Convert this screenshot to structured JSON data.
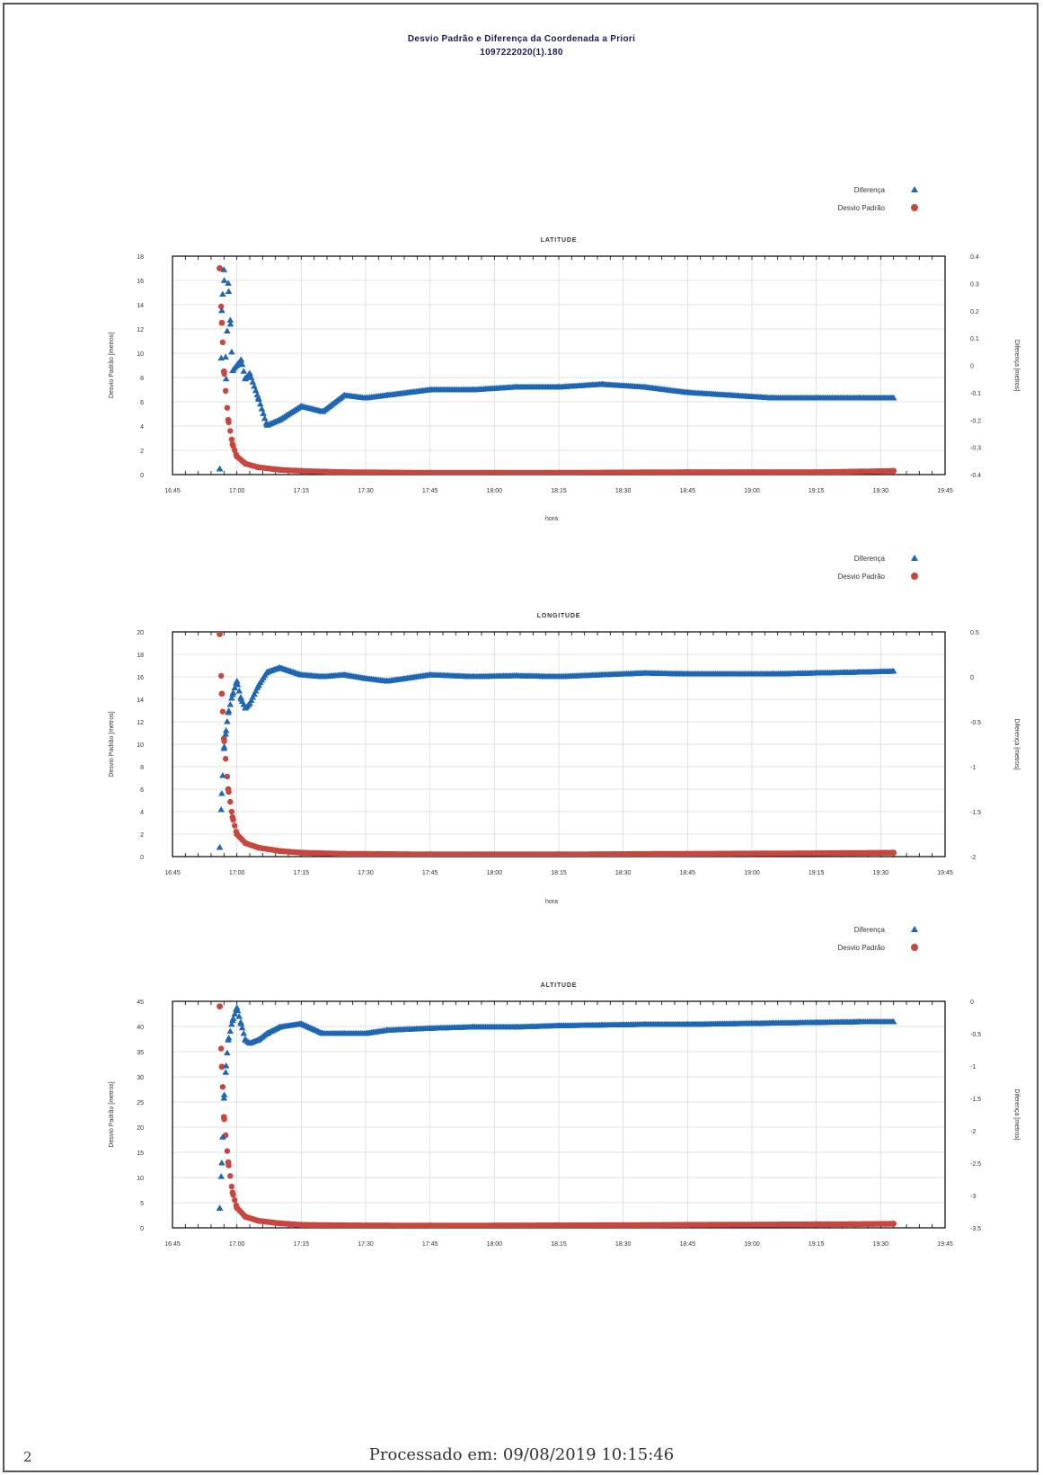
{
  "header": {
    "title": "Desvio Padrão e Diferença da Coordenada a Priori",
    "subtitle": "1097222020(1).180"
  },
  "footer": {
    "processed_text": "Processado em: 09/08/2019 10:15:46",
    "page_number": "2"
  },
  "colors": {
    "diferenca": "#1f66b3",
    "desvio": "#c8463d",
    "grid": "#d9d9d9",
    "frame": "#000000"
  },
  "chart_data": [
    {
      "type": "scatter",
      "title": "LATITUDE",
      "xlabel": "hora",
      "ylabel_left": "Desvio Padrão [metros]",
      "ylabel_right": "Diferença [metros]",
      "legend": [
        "Diferença",
        "Desvio Padrão"
      ],
      "legend_position": "top-right",
      "x_ticks": [
        "16:45",
        "17:00",
        "17:15",
        "17:30",
        "17:45",
        "18:00",
        "18:15",
        "18:30",
        "18:45",
        "19:00",
        "19:15",
        "19:30",
        "19:45"
      ],
      "x_range_minutes": [
        0,
        180
      ],
      "left_axis": {
        "ticks": [
          "0",
          "2",
          "4",
          "6",
          "8",
          "10",
          "12",
          "14",
          "16",
          "18"
        ],
        "range": [
          0,
          18
        ]
      },
      "right_axis": {
        "ticks": [
          "-0.4",
          "-0.3",
          "-0.2",
          "-0.1",
          "0",
          "0.1",
          "0.2",
          "0.3",
          "0.4"
        ],
        "range": [
          -0.4,
          0.4
        ]
      },
      "series": [
        {
          "name": "Diferença",
          "axis": "right",
          "marker": "triangle",
          "x": [
            11,
            11.5,
            12,
            12.5,
            13,
            13.5,
            14,
            15,
            16,
            17,
            18,
            20,
            22,
            25,
            30,
            35,
            40,
            45,
            50,
            60,
            70,
            80,
            90,
            100,
            110,
            120,
            130,
            140,
            150,
            160,
            168
          ],
          "y": [
            -0.38,
            0.2,
            0.35,
            -0.05,
            0.3,
            0.15,
            -0.02,
            0.0,
            0.02,
            -0.05,
            -0.03,
            -0.12,
            -0.22,
            -0.2,
            -0.15,
            -0.17,
            -0.11,
            -0.12,
            -0.11,
            -0.09,
            -0.09,
            -0.08,
            -0.08,
            -0.07,
            -0.08,
            -0.1,
            -0.11,
            -0.12,
            -0.12,
            -0.12,
            -0.12
          ]
        },
        {
          "name": "Desvio Padrão",
          "axis": "left",
          "marker": "circle",
          "x": [
            11,
            11.5,
            12,
            13,
            14,
            15,
            17,
            20,
            25,
            30,
            40,
            60,
            90,
            120,
            150,
            168
          ],
          "y": [
            17,
            12.5,
            8.5,
            4.5,
            2.5,
            1.5,
            0.9,
            0.6,
            0.4,
            0.3,
            0.2,
            0.15,
            0.15,
            0.2,
            0.2,
            0.3
          ]
        }
      ]
    },
    {
      "type": "scatter",
      "title": "LONGITUDE",
      "xlabel": "hora",
      "ylabel_left": "Desvio Padrão [metros]",
      "ylabel_right": "Diferença [metros]",
      "legend": [
        "Diferença",
        "Desvio Padrão"
      ],
      "legend_position": "top-right",
      "x_ticks": [
        "16:45",
        "17:00",
        "17:15",
        "17:30",
        "17:45",
        "18:00",
        "18:15",
        "18:30",
        "18:45",
        "19:00",
        "19:15",
        "19:30",
        "19:45"
      ],
      "x_range_minutes": [
        0,
        180
      ],
      "left_axis": {
        "ticks": [
          "0",
          "2",
          "4",
          "6",
          "8",
          "10",
          "12",
          "14",
          "16",
          "18",
          "20"
        ],
        "range": [
          0,
          20
        ]
      },
      "right_axis": {
        "ticks": [
          "-2",
          "-1.5",
          "-1",
          "-0.5",
          "0",
          "0.5"
        ],
        "range": [
          -2,
          0.5
        ]
      },
      "series": [
        {
          "name": "Diferença",
          "axis": "right",
          "marker": "triangle",
          "x": [
            11,
            11.5,
            12,
            12.5,
            13,
            14,
            15,
            16,
            17,
            18,
            20,
            22,
            25,
            30,
            35,
            40,
            45,
            50,
            60,
            70,
            80,
            90,
            100,
            110,
            120,
            130,
            140,
            150,
            160,
            168
          ],
          "y": [
            -1.9,
            -1.3,
            -0.8,
            -0.6,
            -0.4,
            -0.2,
            -0.05,
            -0.25,
            -0.35,
            -0.3,
            -0.1,
            0.05,
            0.1,
            0.02,
            0.0,
            0.02,
            -0.02,
            -0.05,
            0.02,
            0.0,
            0.01,
            0.0,
            0.02,
            0.04,
            0.03,
            0.03,
            0.03,
            0.04,
            0.05,
            0.06
          ]
        },
        {
          "name": "Desvio Padrão",
          "axis": "left",
          "marker": "circle",
          "x": [
            11,
            11.5,
            12,
            13,
            14,
            15,
            17,
            20,
            25,
            30,
            40,
            60,
            90,
            120,
            150,
            168
          ],
          "y": [
            19.8,
            14.5,
            10.5,
            6.0,
            3.5,
            2.0,
            1.2,
            0.8,
            0.5,
            0.35,
            0.25,
            0.2,
            0.2,
            0.25,
            0.3,
            0.35
          ]
        }
      ]
    },
    {
      "type": "scatter",
      "title": "ALTITUDE",
      "xlabel": "",
      "ylabel_left": "Desvio Padrão [metros]",
      "ylabel_right": "Diferença [metros]",
      "legend": [
        "Diferença",
        "Desvio Padrão"
      ],
      "legend_position": "top-right",
      "x_ticks": [
        "16:45",
        "17:00",
        "17:15",
        "17:30",
        "17:45",
        "18:00",
        "18:15",
        "18:30",
        "18:45",
        "19:00",
        "19:15",
        "19:30",
        "19:45"
      ],
      "x_range_minutes": [
        0,
        180
      ],
      "left_axis": {
        "ticks": [
          "0",
          "5",
          "10",
          "15",
          "20",
          "25",
          "30",
          "35",
          "40",
          "45"
        ],
        "range": [
          0,
          45
        ]
      },
      "right_axis": {
        "ticks": [
          "-3.5",
          "-3",
          "-2.5",
          "-2",
          "-1.5",
          "-1",
          "-0.5",
          "0"
        ],
        "range": [
          -3.5,
          0
        ]
      },
      "series": [
        {
          "name": "Diferença",
          "axis": "right",
          "marker": "triangle",
          "x": [
            11,
            11.5,
            12,
            12.5,
            13,
            14,
            15,
            16,
            17,
            18,
            20,
            22,
            25,
            30,
            35,
            40,
            45,
            50,
            60,
            70,
            80,
            90,
            100,
            110,
            120,
            130,
            140,
            150,
            160,
            168
          ],
          "y": [
            -3.2,
            -2.5,
            -1.5,
            -1.0,
            -0.6,
            -0.3,
            -0.1,
            -0.35,
            -0.6,
            -0.65,
            -0.6,
            -0.5,
            -0.4,
            -0.35,
            -0.5,
            -0.5,
            -0.5,
            -0.45,
            -0.42,
            -0.4,
            -0.4,
            -0.38,
            -0.37,
            -0.36,
            -0.36,
            -0.35,
            -0.34,
            -0.33,
            -0.32,
            -0.32
          ]
        },
        {
          "name": "Desvio Padrão",
          "axis": "left",
          "marker": "circle",
          "x": [
            11,
            11.5,
            12,
            13,
            14,
            15,
            17,
            20,
            25,
            30,
            40,
            60,
            90,
            120,
            150,
            168
          ],
          "y": [
            44,
            32,
            22,
            13,
            7,
            4,
            2.2,
            1.4,
            0.9,
            0.6,
            0.5,
            0.45,
            0.5,
            0.6,
            0.7,
            0.8
          ]
        }
      ]
    }
  ]
}
